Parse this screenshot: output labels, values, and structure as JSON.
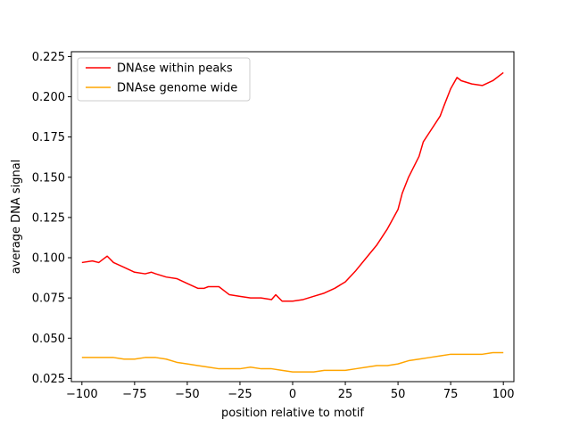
{
  "chart_data": {
    "type": "line",
    "title": "",
    "xlabel": "position relative to motif",
    "ylabel": "average DNA signal",
    "xlim": [
      -105,
      105
    ],
    "ylim": [
      0.023,
      0.228
    ],
    "x_ticks": [
      -100,
      -75,
      -50,
      -25,
      0,
      25,
      50,
      75,
      100
    ],
    "x_tick_labels": [
      "−100",
      "−75",
      "−50",
      "−25",
      "0",
      "25",
      "50",
      "75",
      "100"
    ],
    "y_ticks": [
      0.025,
      0.05,
      0.075,
      0.1,
      0.125,
      0.15,
      0.175,
      0.2,
      0.225
    ],
    "y_tick_labels": [
      "0.025",
      "0.050",
      "0.075",
      "0.100",
      "0.125",
      "0.150",
      "0.175",
      "0.200",
      "0.225"
    ],
    "grid": false,
    "legend_position": "upper-left",
    "series": [
      {
        "name": "DNAse within peaks",
        "color": "#ff0000",
        "x": [
          -100,
          -95,
          -92,
          -90,
          -88,
          -85,
          -80,
          -75,
          -70,
          -67,
          -65,
          -60,
          -55,
          -50,
          -45,
          -42,
          -40,
          -35,
          -32,
          -30,
          -25,
          -20,
          -15,
          -10,
          -8,
          -5,
          0,
          5,
          10,
          15,
          20,
          25,
          30,
          35,
          40,
          45,
          50,
          52,
          55,
          60,
          62,
          65,
          70,
          72,
          75,
          78,
          80,
          85,
          90,
          95,
          100
        ],
        "y": [
          0.097,
          0.098,
          0.097,
          0.099,
          0.101,
          0.097,
          0.094,
          0.091,
          0.09,
          0.091,
          0.09,
          0.088,
          0.087,
          0.084,
          0.081,
          0.081,
          0.082,
          0.082,
          0.079,
          0.077,
          0.076,
          0.075,
          0.075,
          0.074,
          0.077,
          0.073,
          0.073,
          0.074,
          0.076,
          0.078,
          0.081,
          0.085,
          0.092,
          0.1,
          0.108,
          0.118,
          0.13,
          0.14,
          0.15,
          0.163,
          0.172,
          0.178,
          0.188,
          0.195,
          0.205,
          0.212,
          0.21,
          0.208,
          0.207,
          0.21,
          0.215
        ]
      },
      {
        "name": "DNAse genome wide",
        "color": "#ffa500",
        "x": [
          -100,
          -95,
          -90,
          -85,
          -80,
          -75,
          -70,
          -65,
          -60,
          -55,
          -50,
          -45,
          -40,
          -35,
          -30,
          -25,
          -20,
          -15,
          -10,
          -5,
          0,
          5,
          10,
          15,
          20,
          25,
          30,
          35,
          40,
          45,
          50,
          55,
          60,
          65,
          70,
          75,
          80,
          85,
          90,
          95,
          100
        ],
        "y": [
          0.038,
          0.038,
          0.038,
          0.038,
          0.037,
          0.037,
          0.038,
          0.038,
          0.037,
          0.035,
          0.034,
          0.033,
          0.032,
          0.031,
          0.031,
          0.031,
          0.032,
          0.031,
          0.031,
          0.03,
          0.029,
          0.029,
          0.029,
          0.03,
          0.03,
          0.03,
          0.031,
          0.032,
          0.033,
          0.033,
          0.034,
          0.036,
          0.037,
          0.038,
          0.039,
          0.04,
          0.04,
          0.04,
          0.04,
          0.041,
          0.041
        ]
      }
    ]
  }
}
